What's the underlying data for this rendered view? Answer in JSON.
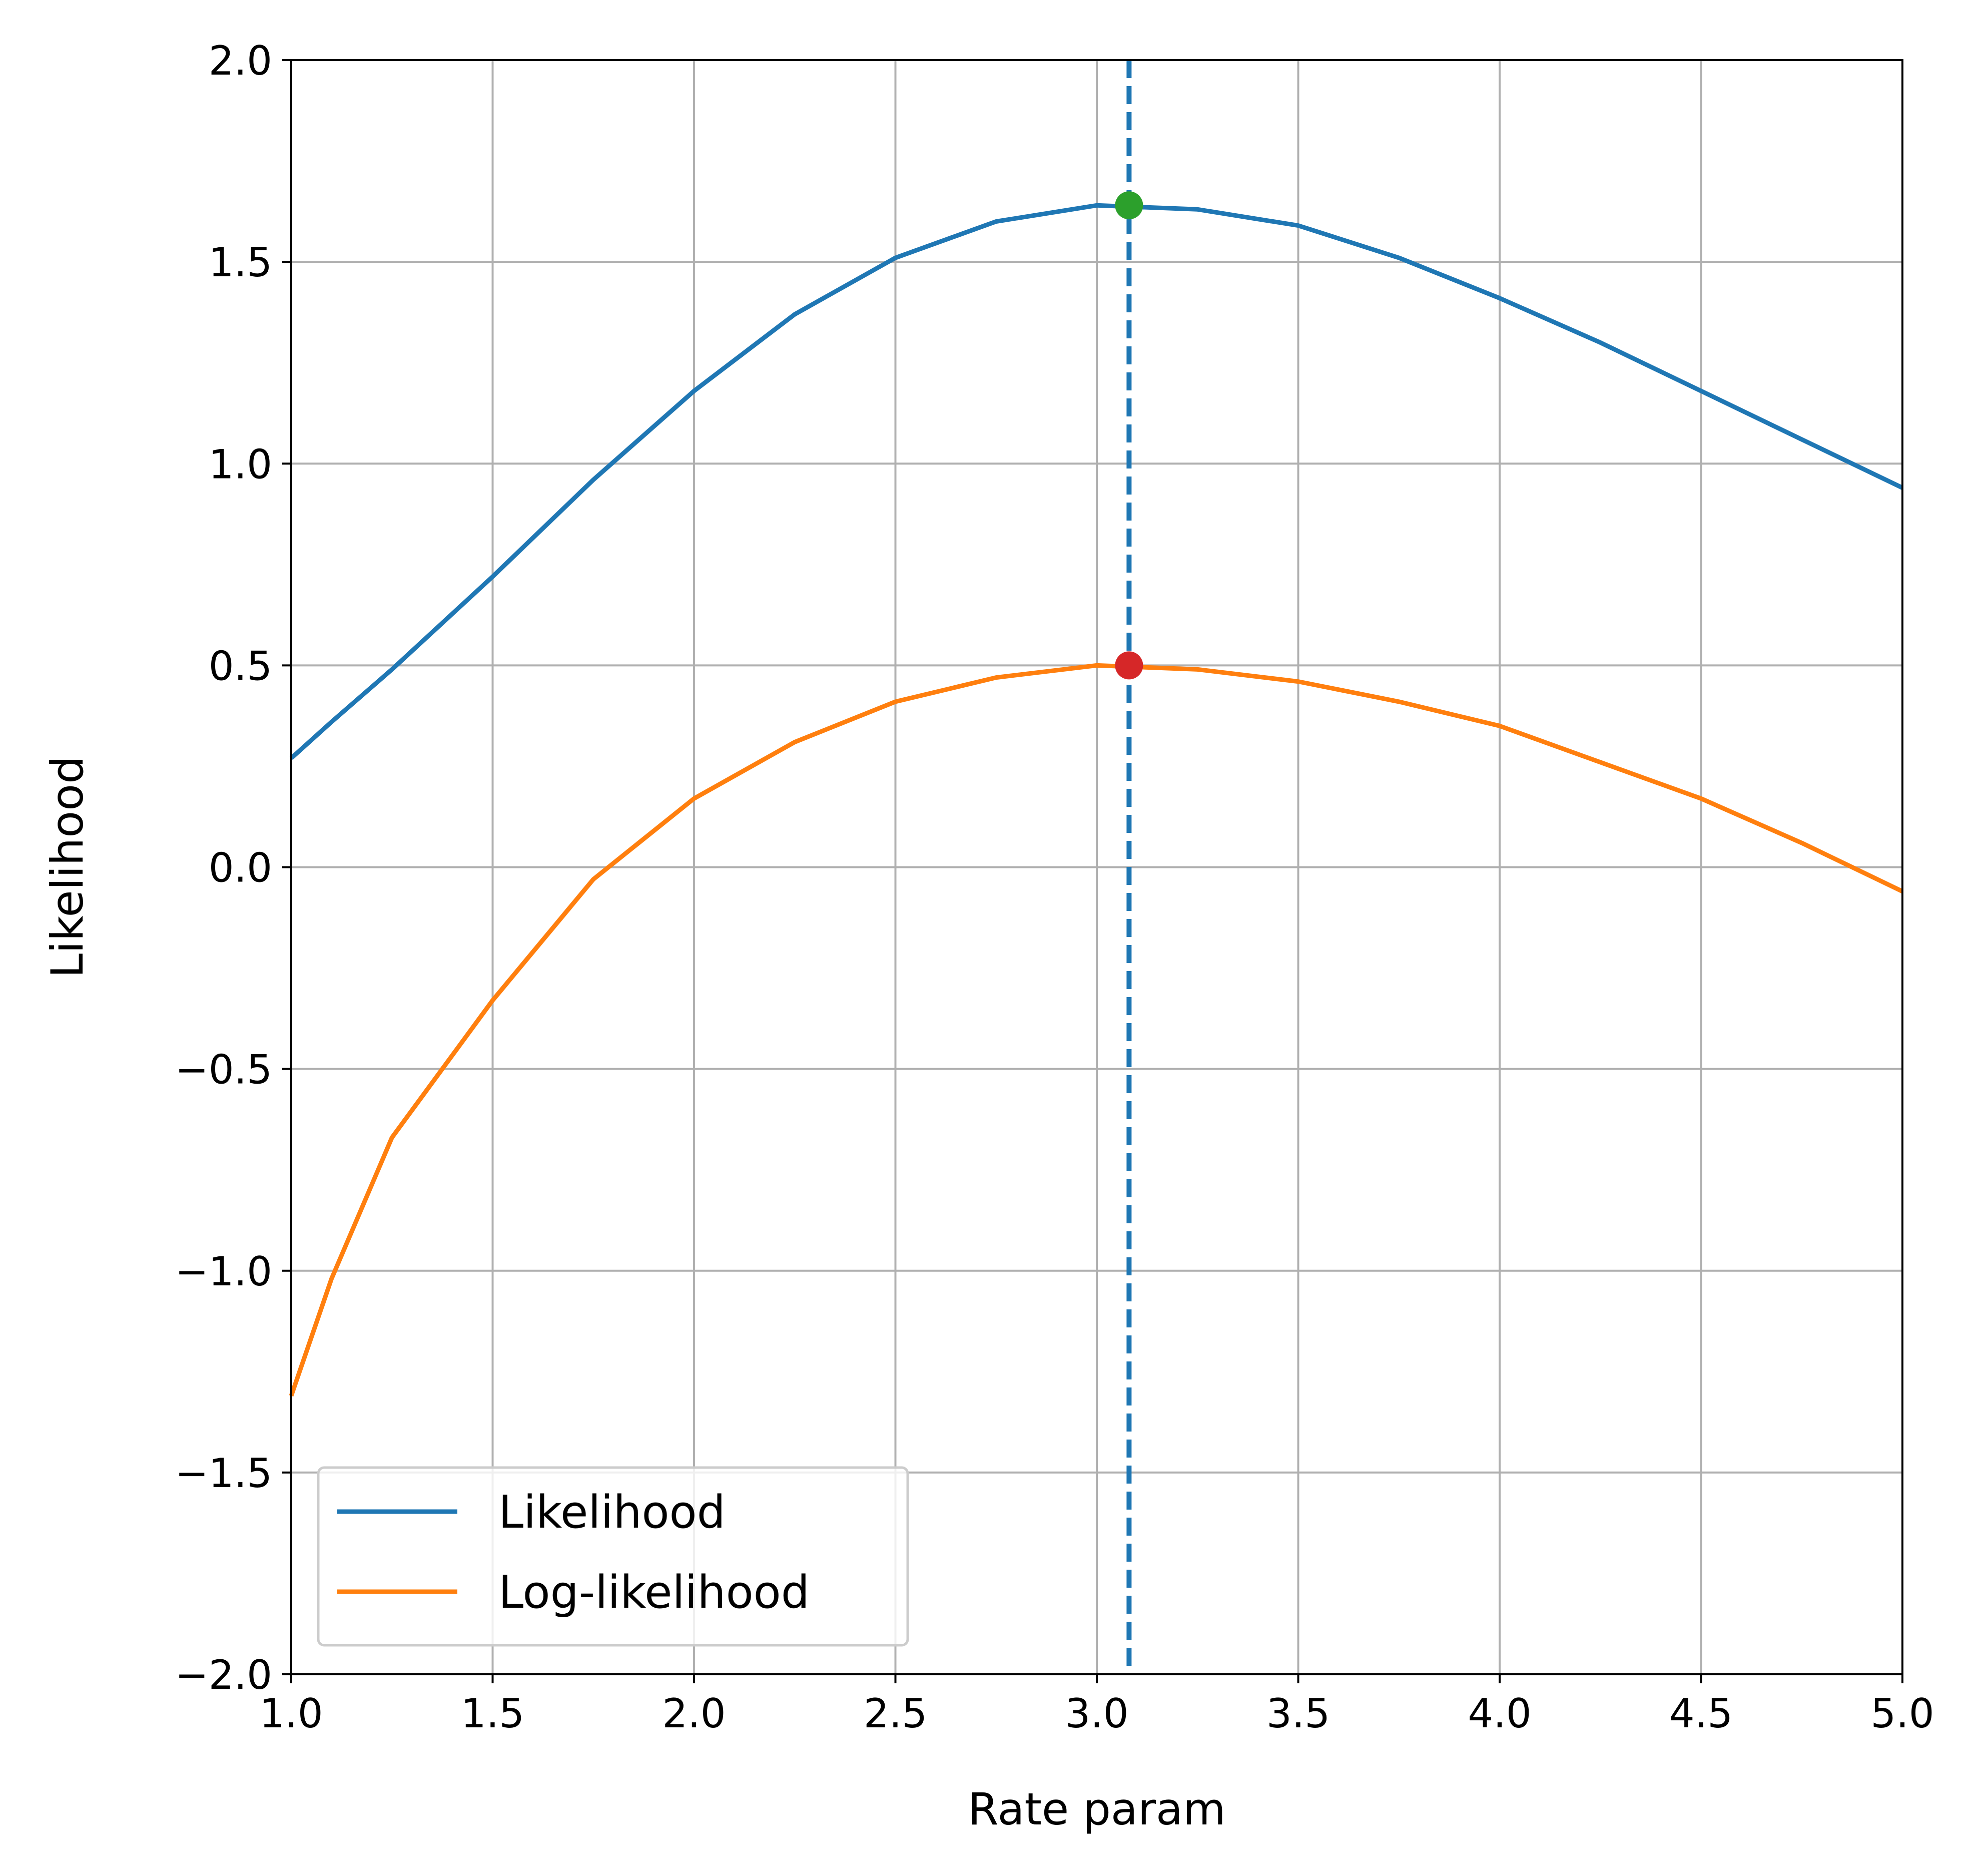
{
  "chart_data": {
    "type": "line",
    "title": "",
    "xlabel": "Rate param",
    "ylabel": "Likelihood",
    "xlim": [
      1.0,
      5.0
    ],
    "ylim": [
      -2.0,
      2.0
    ],
    "xticks": [
      "1.0",
      "1.5",
      "2.0",
      "2.5",
      "3.0",
      "3.5",
      "4.0",
      "4.5",
      "5.0"
    ],
    "yticks": [
      "2.0",
      "1.5",
      "1.0",
      "0.5",
      "0.0",
      "−0.5",
      "−1.0",
      "−1.5",
      "−2.0"
    ],
    "grid": true,
    "legend_position": "lower-left",
    "x": [
      1.0,
      1.1,
      1.25,
      1.5,
      1.75,
      2.0,
      2.25,
      2.5,
      2.75,
      3.0,
      3.25,
      3.5,
      3.75,
      4.0,
      4.25,
      4.5,
      4.75,
      5.0
    ],
    "series": [
      {
        "name": "Likelihood",
        "color": "#1f77b4",
        "values": [
          0.27,
          0.36,
          0.49,
          0.72,
          0.96,
          1.18,
          1.37,
          1.51,
          1.6,
          1.64,
          1.63,
          1.59,
          1.51,
          1.41,
          1.3,
          1.18,
          1.06,
          0.94
        ]
      },
      {
        "name": "Log-likelihood",
        "color": "#ff7f0e",
        "values": [
          -1.31,
          -1.02,
          -0.67,
          -0.33,
          -0.03,
          0.17,
          0.31,
          0.41,
          0.47,
          0.5,
          0.49,
          0.46,
          0.41,
          0.35,
          0.26,
          0.17,
          0.06,
          -0.06
        ]
      }
    ],
    "vline": {
      "x": 3.08,
      "color": "#1f77b4",
      "style": "dashed"
    },
    "markers": [
      {
        "x": 3.08,
        "y": 1.64,
        "color": "#2ca02c"
      },
      {
        "x": 3.08,
        "y": 0.5,
        "color": "#d62728"
      }
    ]
  }
}
